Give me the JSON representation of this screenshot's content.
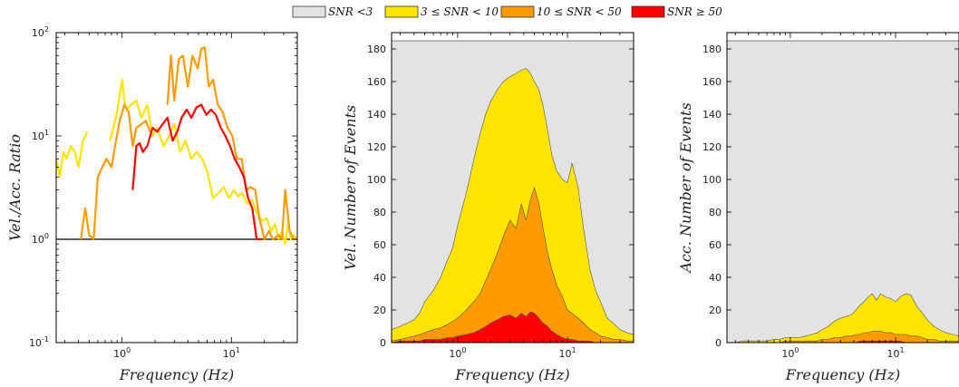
{
  "legend": {
    "items": [
      {
        "label": "SNR <3",
        "color": "#e3e3e3"
      },
      {
        "label": "3 ≤ SNR < 10",
        "color": "#ffe400"
      },
      {
        "label": "10 ≤ SNR < 50",
        "color": "#ff9a00"
      },
      {
        "label": "SNR ≥ 50",
        "color": "#ff0000"
      }
    ]
  },
  "chart_data": [
    {
      "type": "line",
      "xscale": "log",
      "yscale": "log",
      "xlim": [
        0.25,
        40
      ],
      "ylim": [
        0.1,
        100
      ],
      "xlabel": "Frequency (Hz)",
      "ylabel": "Vel./Acc. Ratio",
      "xticks": [
        {
          "base": "10",
          "exp": "0",
          "value": 1
        },
        {
          "base": "10",
          "exp": "1",
          "value": 10
        }
      ],
      "yticks": [
        {
          "base": "10",
          "exp": "-1",
          "value": 0.1
        },
        {
          "base": "10",
          "exp": "0",
          "value": 1
        },
        {
          "base": "10",
          "exp": "1",
          "value": 10
        },
        {
          "base": "10",
          "exp": "2",
          "value": 100
        }
      ],
      "reference_line": {
        "y": 1,
        "color": "#000000"
      },
      "series": [
        {
          "name": "3 ≤ SNR < 10",
          "color": "#ffe400",
          "x": [
            0.25,
            0.27,
            0.29,
            0.31,
            0.34,
            0.37,
            0.4,
            0.44,
            0.48,
            0.52,
            0.6,
            0.68,
            0.78,
            0.9,
            1.0,
            1.05,
            1.1,
            1.2,
            1.35,
            1.5,
            1.7,
            1.9,
            2.1,
            2.4,
            2.7,
            3.0,
            3.4,
            3.8,
            4.3,
            4.8,
            5.4,
            6.0,
            6.8,
            7.6,
            8.5,
            9.5,
            10.5,
            11.5,
            12.5,
            14,
            15.5,
            17,
            19,
            21,
            23,
            25,
            27,
            29,
            31,
            33,
            35,
            37,
            40
          ],
          "y": [
            6,
            4,
            7,
            6,
            8,
            7,
            5,
            9,
            11,
            null,
            null,
            null,
            9,
            17,
            35,
            22,
            18,
            20,
            22,
            15,
            20,
            10,
            12,
            8,
            10,
            13,
            7,
            9,
            6,
            7,
            6,
            4.5,
            2.5,
            2.8,
            3.2,
            2.5,
            3.0,
            2.6,
            2.8,
            2.2,
            2.4,
            1.8,
            1.5,
            1.6,
            1.2,
            1.4,
            1.0,
            1.2,
            0.9,
            1.5,
            1.0,
            1.1,
            1.0
          ]
        },
        {
          "name": "10 ≤ SNR < 50",
          "color": "#ff9a00",
          "x": [
            0.42,
            0.46,
            0.5,
            0.55,
            0.6,
            0.66,
            0.72,
            0.8,
            0.88,
            0.95,
            1.05,
            1.15,
            1.25,
            1.35,
            1.5,
            1.65,
            1.8,
            2.0,
            2.2,
            2.45,
            2.6,
            2.8,
            3.0,
            3.3,
            3.6,
            4.0,
            4.4,
            4.9,
            5.3,
            5.7,
            6.2,
            6.8,
            7.5,
            8.3,
            9.2,
            10.2,
            11.2,
            12.4,
            13.6,
            15,
            16.5,
            18,
            20,
            22,
            24,
            27,
            29,
            31,
            34,
            37
          ],
          "y": [
            1.0,
            2,
            1.1,
            1.0,
            4,
            5,
            6,
            5,
            9,
            14,
            20,
            17,
            8,
            12,
            13,
            14,
            11,
            null,
            null,
            null,
            20,
            60,
            22,
            55,
            60,
            30,
            60,
            45,
            70,
            72,
            30,
            35,
            20,
            17,
            12,
            10,
            6,
            6,
            3,
            3.2,
            3.0,
            1.6,
            1.0,
            1.2,
            1.0,
            1.1,
            1.0,
            3.0,
            1.2,
            1.0
          ]
        },
        {
          "name": "SNR ≥ 50",
          "color": "#ff0000",
          "x": [
            1.25,
            1.35,
            1.45,
            1.55,
            1.7,
            1.9,
            2.1,
            2.35,
            2.6,
            2.9,
            3.2,
            3.5,
            3.9,
            4.3,
            4.8,
            5.3,
            5.9,
            6.5,
            7.2,
            8.0,
            8.8,
            9.7,
            10.7,
            11.8,
            13,
            14.2,
            15.5,
            17,
            19
          ],
          "y": [
            3,
            8,
            8.5,
            7,
            8,
            12,
            11,
            13,
            15,
            9,
            11,
            15,
            18,
            15,
            19,
            20,
            16,
            18,
            16,
            12,
            10,
            8,
            6,
            5,
            4,
            2.5,
            2.0,
            1.0,
            1.0
          ]
        }
      ]
    },
    {
      "type": "area",
      "stacked": false,
      "xscale": "log",
      "xlim": [
        0.25,
        40
      ],
      "ylim": [
        0,
        190
      ],
      "xlabel": "Frequency (Hz)",
      "ylabel": "Vel. Number of Events",
      "xticks": [
        {
          "base": "10",
          "exp": "0",
          "value": 1
        },
        {
          "base": "10",
          "exp": "1",
          "value": 10
        }
      ],
      "yticks": [
        0,
        20,
        40,
        60,
        80,
        100,
        120,
        140,
        160,
        180
      ],
      "x": [
        0.25,
        0.3,
        0.35,
        0.4,
        0.45,
        0.5,
        0.6,
        0.7,
        0.8,
        0.9,
        1.0,
        1.2,
        1.4,
        1.6,
        1.8,
        2.0,
        2.3,
        2.6,
        3.0,
        3.4,
        3.8,
        4.2,
        4.6,
        5.0,
        5.5,
        6.0,
        6.6,
        7.2,
        8.0,
        9.0,
        10.0,
        11.0,
        12.5,
        14,
        16,
        18,
        20,
        23,
        26,
        30,
        35,
        40
      ],
      "series": [
        {
          "name": "SNR <3",
          "color": "#e3e3e3",
          "values": [
            185,
            185,
            185,
            185,
            185,
            185,
            185,
            185,
            185,
            185,
            185,
            185,
            185,
            185,
            185,
            185,
            185,
            185,
            185,
            185,
            185,
            185,
            185,
            185,
            185,
            185,
            185,
            185,
            185,
            185,
            185,
            185,
            185,
            185,
            185,
            185,
            185,
            185,
            185,
            185,
            185,
            185
          ]
        },
        {
          "name": "3 ≤ SNR < 10",
          "color": "#ffe400",
          "values": [
            8,
            10,
            12,
            14,
            18,
            25,
            32,
            40,
            50,
            58,
            72,
            92,
            112,
            128,
            140,
            148,
            155,
            160,
            163,
            165,
            167,
            168,
            165,
            160,
            155,
            145,
            130,
            115,
            105,
            100,
            98,
            110,
            95,
            70,
            45,
            32,
            25,
            15,
            12,
            8,
            6,
            5
          ]
        },
        {
          "name": "10 ≤ SNR < 50",
          "color": "#ff9a00",
          "values": [
            1,
            2,
            3,
            4,
            5,
            6,
            8,
            9,
            11,
            13,
            15,
            20,
            25,
            30,
            38,
            45,
            55,
            65,
            75,
            70,
            85,
            75,
            88,
            95,
            85,
            70,
            55,
            45,
            35,
            28,
            20,
            18,
            15,
            12,
            8,
            6,
            4,
            3,
            2,
            2,
            1,
            1
          ]
        },
        {
          "name": "SNR ≥ 50",
          "color": "#ff0000",
          "values": [
            0,
            1,
            1,
            1,
            1,
            2,
            2,
            2,
            3,
            3,
            4,
            5,
            6,
            8,
            10,
            12,
            14,
            16,
            17,
            15,
            18,
            16,
            19,
            18,
            15,
            12,
            10,
            7,
            5,
            3,
            2,
            2,
            1,
            1,
            1,
            0,
            0,
            0,
            0,
            0,
            0,
            0
          ]
        }
      ]
    },
    {
      "type": "area",
      "stacked": false,
      "xscale": "log",
      "xlim": [
        0.25,
        40
      ],
      "ylim": [
        0,
        190
      ],
      "xlabel": "Frequency (Hz)",
      "ylabel": "Acc. Number of Events",
      "xticks": [
        {
          "base": "10",
          "exp": "0",
          "value": 1
        },
        {
          "base": "10",
          "exp": "1",
          "value": 10
        }
      ],
      "yticks": [
        0,
        20,
        40,
        60,
        80,
        100,
        120,
        140,
        160,
        180
      ],
      "x": [
        0.25,
        0.3,
        0.35,
        0.4,
        0.45,
        0.5,
        0.6,
        0.7,
        0.8,
        0.9,
        1.0,
        1.2,
        1.4,
        1.6,
        1.8,
        2.0,
        2.3,
        2.6,
        3.0,
        3.4,
        3.8,
        4.2,
        4.6,
        5.0,
        5.5,
        6.0,
        6.6,
        7.2,
        8.0,
        9.0,
        10.0,
        11.0,
        12.5,
        14,
        16,
        18,
        20,
        23,
        26,
        30,
        35,
        40
      ],
      "series": [
        {
          "name": "SNR <3",
          "color": "#e3e3e3",
          "values": [
            185,
            185,
            185,
            185,
            185,
            185,
            185,
            185,
            185,
            185,
            185,
            185,
            185,
            185,
            185,
            185,
            185,
            185,
            185,
            185,
            185,
            185,
            185,
            185,
            185,
            185,
            185,
            185,
            185,
            185,
            185,
            185,
            185,
            185,
            185,
            185,
            185,
            185,
            185,
            185,
            185,
            185
          ]
        },
        {
          "name": "3 ≤ SNR < 10",
          "color": "#ffe400",
          "values": [
            0,
            0,
            1,
            1,
            1,
            1,
            1,
            2,
            2,
            3,
            3,
            3,
            4,
            5,
            6,
            8,
            10,
            13,
            15,
            16,
            17,
            20,
            23,
            25,
            28,
            30,
            26,
            30,
            28,
            27,
            25,
            28,
            30,
            29,
            22,
            18,
            14,
            10,
            8,
            6,
            5,
            4
          ]
        },
        {
          "name": "10 ≤ SNR < 50",
          "color": "#ff9a00",
          "values": [
            0,
            0,
            0,
            0,
            0,
            0,
            0,
            0,
            0,
            1,
            1,
            1,
            1,
            1,
            1,
            2,
            2,
            3,
            3,
            4,
            4,
            5,
            5,
            6,
            6,
            7,
            7,
            7,
            6,
            6,
            5,
            5,
            5,
            4,
            4,
            3,
            2,
            2,
            1,
            1,
            1,
            1
          ]
        },
        {
          "name": "SNR ≥ 50",
          "color": "#ff0000",
          "values": [
            0,
            0,
            0,
            0,
            0,
            0,
            0,
            0,
            0,
            0,
            0,
            0,
            0,
            0,
            0,
            0,
            0,
            0,
            0,
            0,
            0,
            0,
            1,
            1,
            1,
            1,
            1,
            1,
            1,
            1,
            1,
            1,
            0,
            0,
            0,
            0,
            0,
            0,
            0,
            0,
            0,
            0
          ]
        }
      ]
    }
  ]
}
